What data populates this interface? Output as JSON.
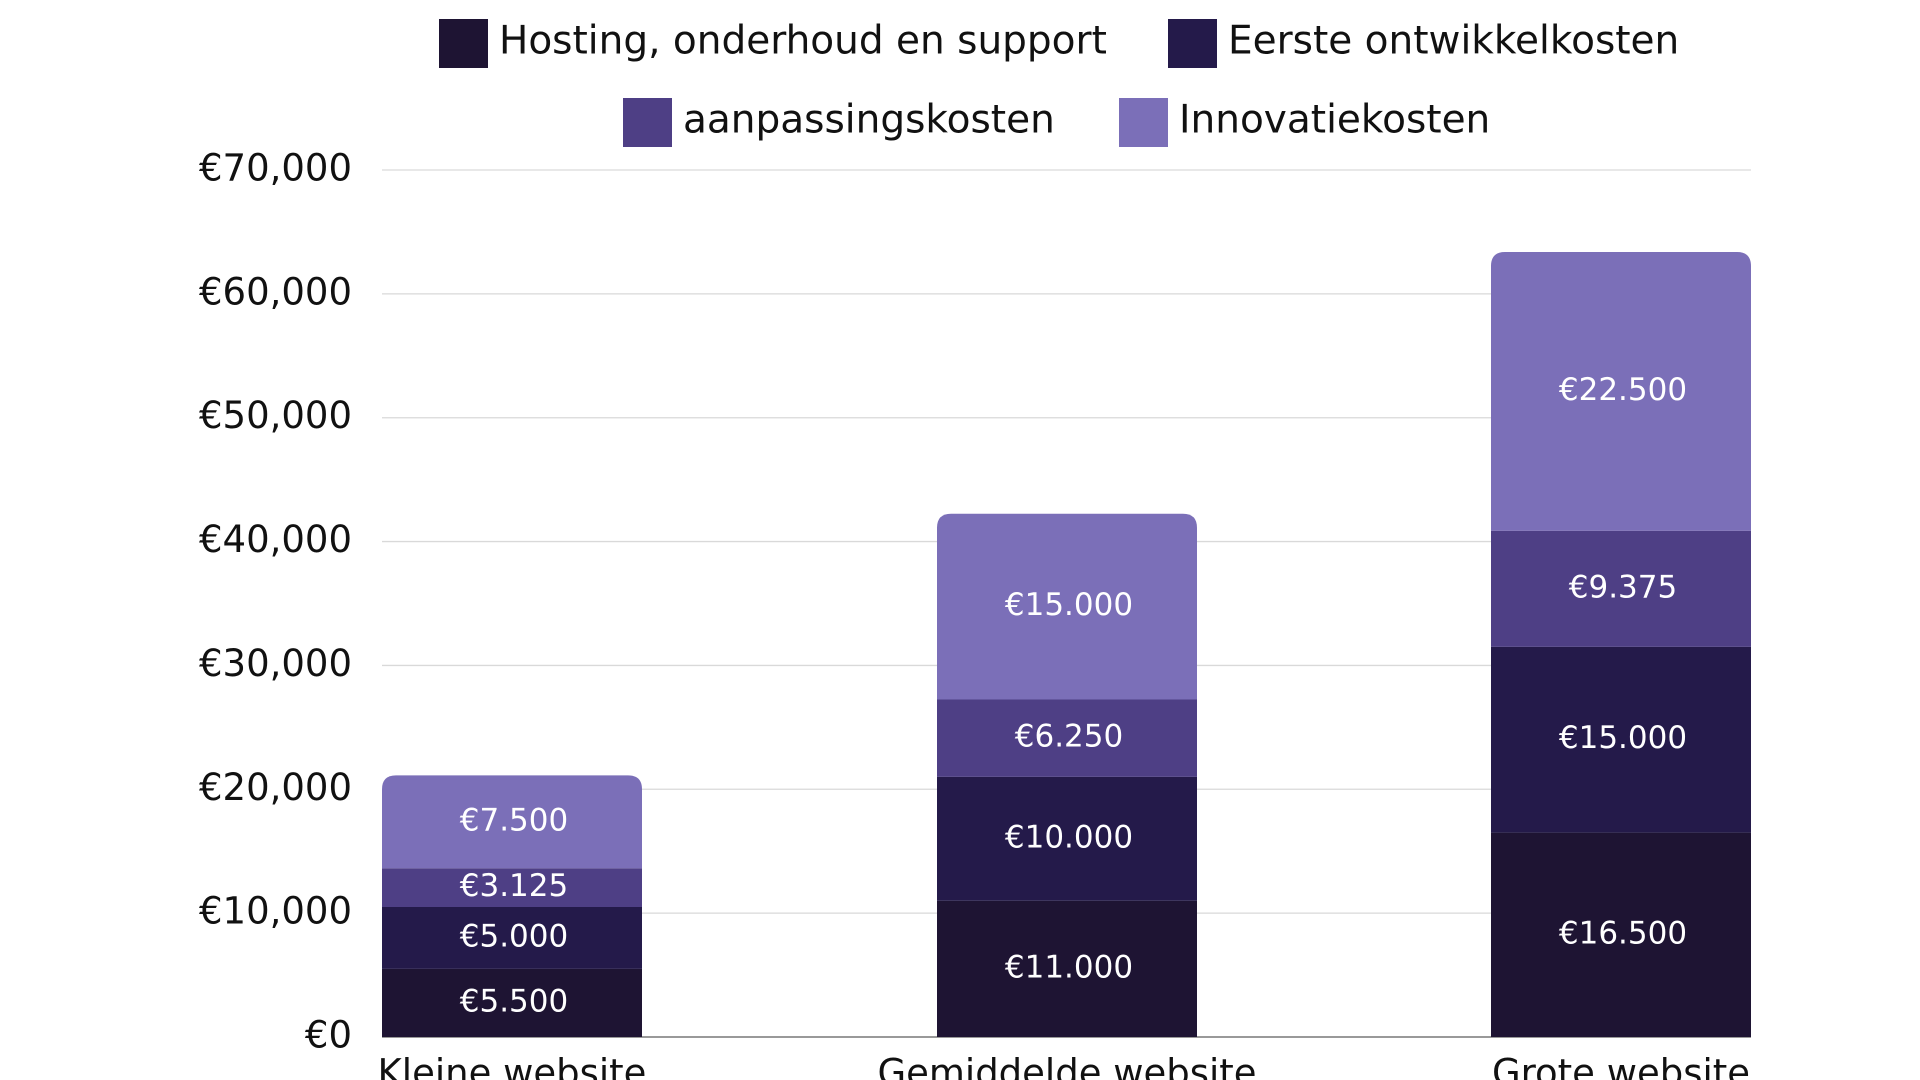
{
  "chart_data": {
    "type": "stacked_bar",
    "categories": [
      "Kleine website",
      "Gemiddelde website",
      "Grote website"
    ],
    "series": [
      {
        "name": "Hosting, onderhoud en support",
        "color": "#1e1433",
        "values": [
          5500,
          11000,
          16500
        ],
        "value_labels": [
          "€5.500",
          "€11.000",
          "€16.500"
        ]
      },
      {
        "name": "Eerste ontwikkelkosten",
        "color": "#241a4a",
        "values": [
          5000,
          10000,
          15000
        ],
        "value_labels": [
          "€5.000",
          "€10.000",
          "€15.000"
        ]
      },
      {
        "name": "aanpassingskosten",
        "color": "#4e3f85",
        "values": [
          3125,
          6250,
          9375
        ],
        "value_labels": [
          "€3.125",
          "€6.250",
          "€9.375"
        ]
      },
      {
        "name": "Innovatiekosten",
        "color": "#7b6fb8",
        "values": [
          7500,
          15000,
          22500
        ],
        "value_labels": [
          "€7.500",
          "€15.000",
          "€22.500"
        ]
      }
    ],
    "ylim": [
      0,
      70000
    ],
    "yticks": [
      {
        "value": 0,
        "label": "€0"
      },
      {
        "value": 10000,
        "label": "€10,000"
      },
      {
        "value": 20000,
        "label": "€20,000"
      },
      {
        "value": 30000,
        "label": "€30,000"
      },
      {
        "value": 40000,
        "label": "€40,000"
      },
      {
        "value": 50000,
        "label": "€50,000"
      },
      {
        "value": 60000,
        "label": "€60,000"
      },
      {
        "value": 70000,
        "label": "€70,000"
      }
    ],
    "grid": true
  }
}
